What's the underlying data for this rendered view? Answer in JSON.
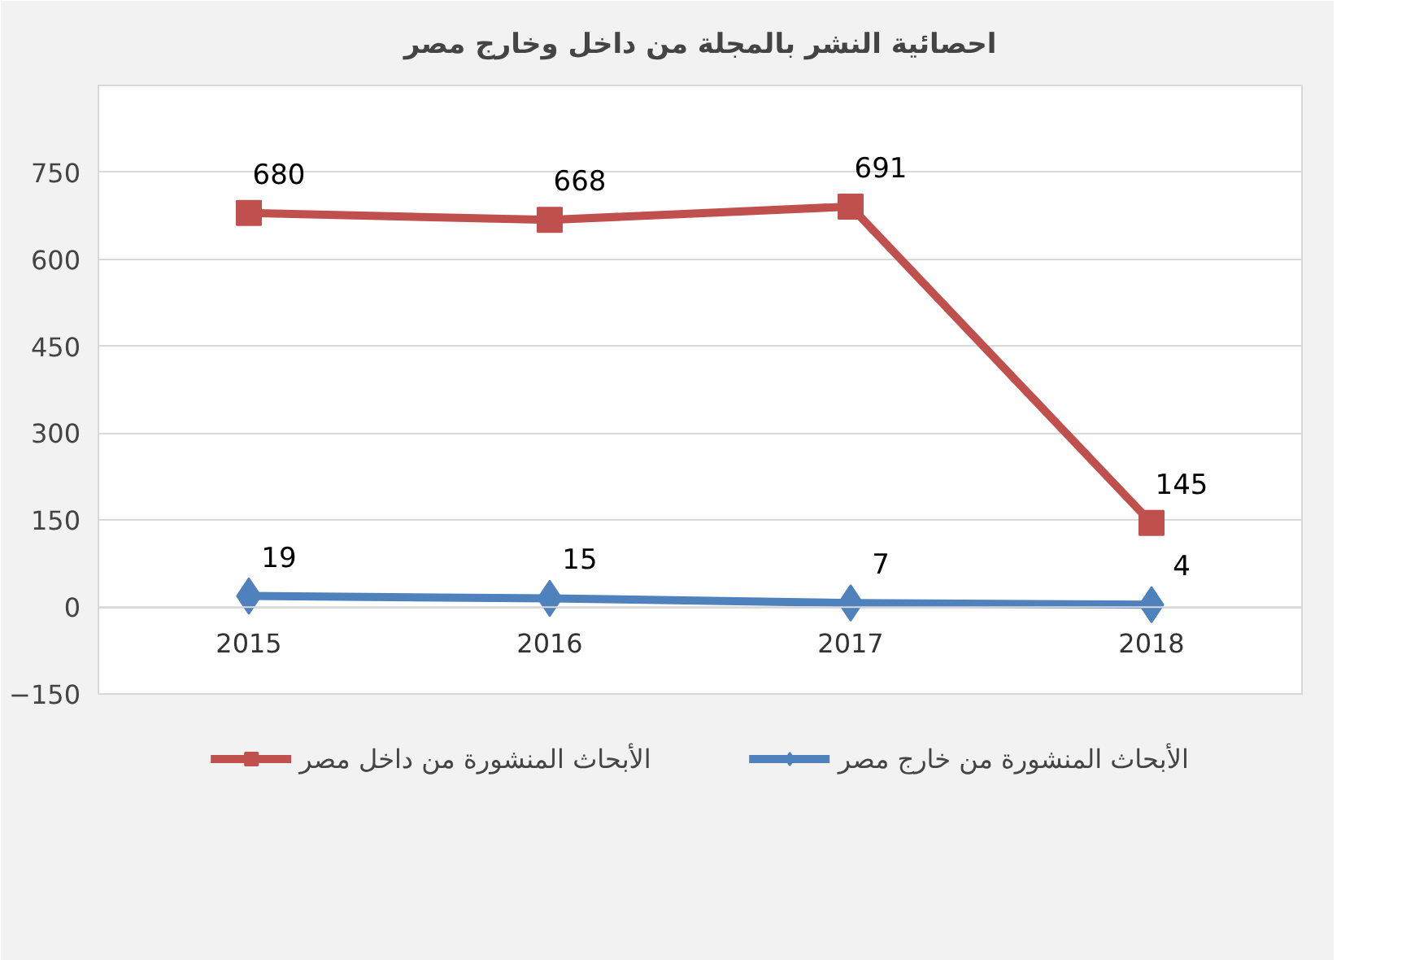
{
  "chart_data": {
    "type": "line",
    "title": "احصائية النشر بالمجلة من داخل وخارج مصر",
    "categories": [
      "2015",
      "2016",
      "2017",
      "2018"
    ],
    "series": [
      {
        "name": "الأبحاث المنشورة من داخل مصر",
        "color": "#c0504d",
        "marker": "square",
        "values": [
          680,
          668,
          691,
          145
        ]
      },
      {
        "name": "الأبحاث المنشورة من خارج مصر",
        "color": "#4f81bd",
        "marker": "diamond",
        "values": [
          19,
          15,
          7,
          4
        ]
      }
    ],
    "ylim": [
      -150,
      900
    ],
    "yticks": [
      -150,
      0,
      150,
      300,
      450,
      600,
      750
    ],
    "grid": "y",
    "legend": "bottom",
    "data_labels": true
  }
}
